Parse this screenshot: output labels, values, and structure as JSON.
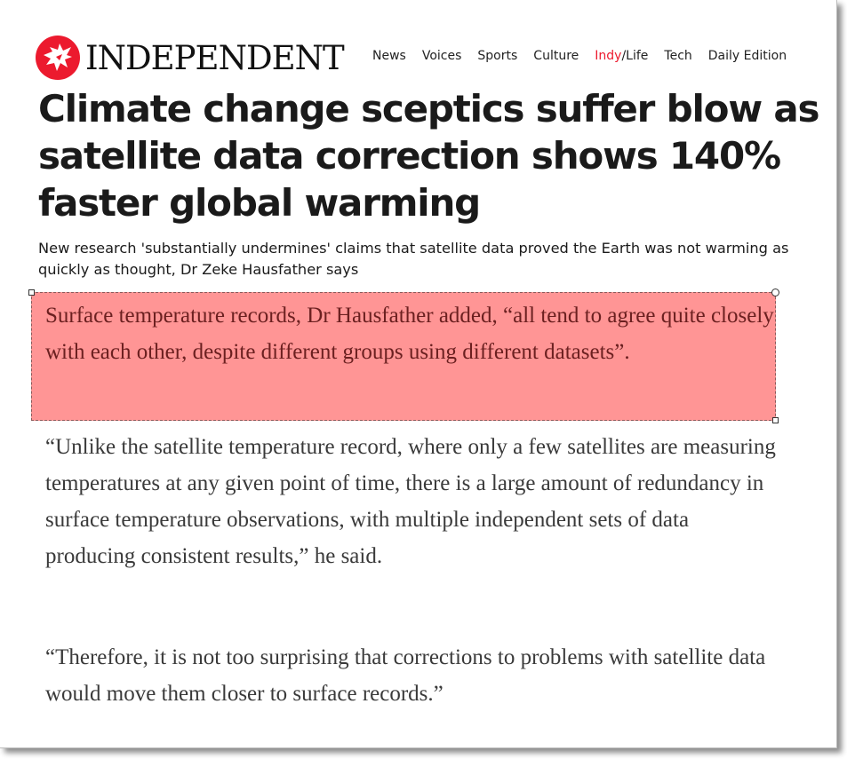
{
  "brand": {
    "name": "INDEPENDENT",
    "logo_color": "#ec1a2e",
    "logo_icon": "eagle-icon"
  },
  "nav": {
    "items": [
      {
        "label": "News"
      },
      {
        "label": "Voices"
      },
      {
        "label": "Sports"
      },
      {
        "label": "Culture"
      },
      {
        "label_prefix": "Indy",
        "label_suffix": "/Life"
      },
      {
        "label": "Tech"
      },
      {
        "label": "Daily Edition"
      }
    ]
  },
  "article": {
    "headline": "Climate change sceptics suffer blow as satellite data correction shows 140% faster global warming",
    "standfirst": "New research 'substantially undermines' claims that satellite data proved the Earth was not warming as quickly as thought, Dr Zeke Hausfather says",
    "highlighted_paragraph": "Surface temperature records, Dr Hausfather added, “all tend to agree quite closely with each other, despite different groups using different datasets”.",
    "paragraphs": [
      "“Unlike the satellite temperature record, where only a few satellites are measuring temperatures at any given point of time, there is a large amount of redundancy in surface temperature observations, with multiple independent sets of data producing consistent results,” he said.",
      "“Therefore, it is not too surprising that corrections to problems with satellite data would move them closer to surface records.”"
    ]
  },
  "highlight_color": "#ff9595"
}
